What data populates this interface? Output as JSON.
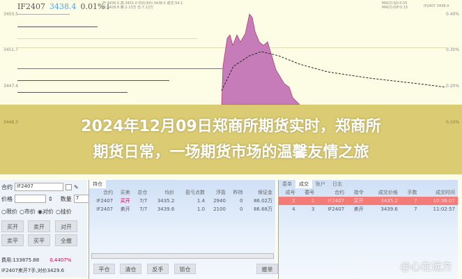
{
  "quote": {
    "symbol": "IF2407",
    "price": "3438.4",
    "change": "0.01%↓",
    "info_line1": "开:3436.0 高:3451.0 均价(60):3438.5 成交:54.1",
    "info_line2": "低:3428.8 量:2.13万 仓:7.22万",
    "right_info1": "MACD:SD:0.55",
    "right_info2": "MACD:DIF:0.15",
    "right_info3": "IF2407 3438.4"
  },
  "y_axis_left": [
    "3450.5",
    "3451.7",
    "3447.4",
    "3446.3"
  ],
  "y_axis_right": [
    "0.40%",
    "0.30%",
    "0.20%",
    "0.10%"
  ],
  "title": {
    "line1": "2024年12月09日郑商所期货实时，郑商所",
    "line2": "期货日常，一场期货市场的温馨友情之旅"
  },
  "order_panel": {
    "contract_label": "合约",
    "contract": "IF2407",
    "price_label": "价格",
    "price": "",
    "qty_label": "数量",
    "qty": "7",
    "price_types": [
      "限价",
      "市价",
      "对价",
      "挂价"
    ],
    "selected_price_type": "对价",
    "buttons": [
      "买开",
      "卖开",
      "对开",
      "卖平",
      "买平",
      "全撤"
    ],
    "fee": "费用:133875.88",
    "fee_pct": "0.4407%",
    "message": "IF2407卖开7手,对价3429.6"
  },
  "positions": {
    "tab": "持仓",
    "columns": [
      "合约",
      "买卖",
      "总仓",
      "均价",
      "盈亏点数",
      "浮盈",
      "昨持",
      "保证金"
    ],
    "rows": [
      [
        "IF2407",
        "买开",
        "7/7",
        "3435.2",
        "1.4",
        "2940",
        "0",
        "86.02万"
      ],
      [
        "IF2407",
        "卖开",
        "7/7",
        "3439.6",
        "1.0",
        "2100",
        "0",
        "86.68万"
      ]
    ],
    "buttons": [
      "平仓",
      "清仓",
      "反手",
      "锁仓",
      "撤单"
    ]
  },
  "trades": {
    "tabs": [
      "委单",
      "成交",
      "账户",
      "日志"
    ],
    "active_tab": "成交",
    "columns": [
      "成号",
      "委号",
      "合约",
      "指令",
      "成交价格",
      "手数",
      "成交时间"
    ],
    "rows": [
      [
        "2",
        "1",
        "IF2407",
        "买开",
        "3435.2",
        "7",
        "10:36:07"
      ],
      [
        "4",
        "3",
        "IF2407",
        "卖开",
        "3439.6",
        "7",
        "11:02:57"
      ]
    ]
  },
  "watermark": "@心在远方",
  "colors": {
    "area": "#c67cb8",
    "band": "#d6c462",
    "selected_row": "#f37b78"
  }
}
